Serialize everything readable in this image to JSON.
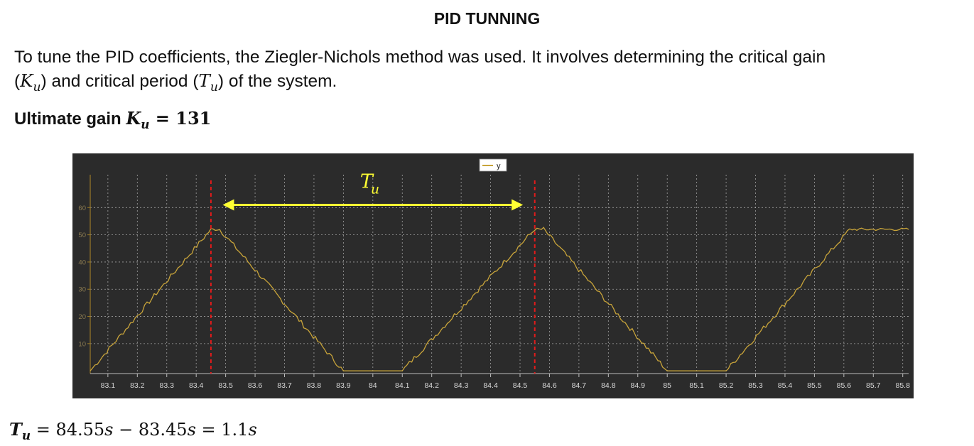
{
  "title": "PID TUNNING",
  "paragraph": {
    "text_1": "To tune the PID coefficients, the Ziegler-Nichols method was used. It involves determining the critical gain",
    "open_paren": "(",
    "ku_symbol": "K",
    "ku_subscript": "u",
    "text_2": ") and critical period (",
    "tu_symbol": "T",
    "tu_subscript": "u",
    "text_3": ") of the system."
  },
  "ultimate_gain": {
    "label": "Ultimate gain ",
    "symbol": "K",
    "subscript": "u",
    "equals": " = ",
    "value": "131"
  },
  "chart_data": {
    "type": "line",
    "background": "#2b2b2b",
    "line_color": "#c8a43a",
    "grid_color": "#c8c8c8",
    "marker_color": "#e21b1b",
    "arrow_color": "#ffff33",
    "legend": {
      "label": "y",
      "placement": "top-center"
    },
    "grid": true,
    "xlim": [
      83.04,
      85.82
    ],
    "ylim": [
      -1,
      70
    ],
    "x_ticks": [
      83.1,
      83.2,
      83.3,
      83.4,
      83.5,
      83.6,
      83.7,
      83.8,
      83.9,
      84,
      84.1,
      84.2,
      84.3,
      84.4,
      84.5,
      84.6,
      84.7,
      84.8,
      84.9,
      85,
      85.1,
      85.2,
      85.3,
      85.4,
      85.5,
      85.6,
      85.7,
      85.8
    ],
    "x_tick_labels": [
      "83.1",
      "83.2",
      "83.3",
      "83.4",
      "83.5",
      "83.6",
      "83.7",
      "83.8",
      "83.9",
      "84",
      "84.1",
      "84.2",
      "84.3",
      "84.4",
      "84.5",
      "84.6",
      "84.7",
      "84.8",
      "84.9",
      "85",
      "85.1",
      "85.2",
      "85.3",
      "85.4",
      "85.5",
      "85.6",
      "85.7",
      "85.8"
    ],
    "y_ticks": [
      10,
      20,
      30,
      40,
      50,
      60
    ],
    "y_tick_labels": [
      "10",
      "20",
      "30",
      "40",
      "50",
      "60"
    ],
    "series": [
      {
        "name": "y",
        "x": [
          83.04,
          83.45,
          83.48,
          83.9,
          84.1,
          84.55,
          84.58,
          85.0,
          85.2,
          85.62,
          85.82
        ],
        "y": [
          0,
          52,
          52,
          0,
          0,
          52,
          52,
          0,
          0,
          52,
          52
        ]
      }
    ],
    "vertical_markers": [
      83.45,
      84.55
    ],
    "period_arrow": {
      "x_start": 83.49,
      "x_end": 84.51,
      "y": 61,
      "label": "T",
      "label_subscript": "u"
    }
  },
  "period_equation": {
    "symbol": "T",
    "subscript": "u",
    "equals": " = ",
    "value_1": "84.55",
    "unit_1": "s",
    "minus": " − ",
    "value_2": "83.45",
    "unit_2": "s",
    "equals_2": " = ",
    "result": "1.1",
    "unit_3": "s"
  }
}
